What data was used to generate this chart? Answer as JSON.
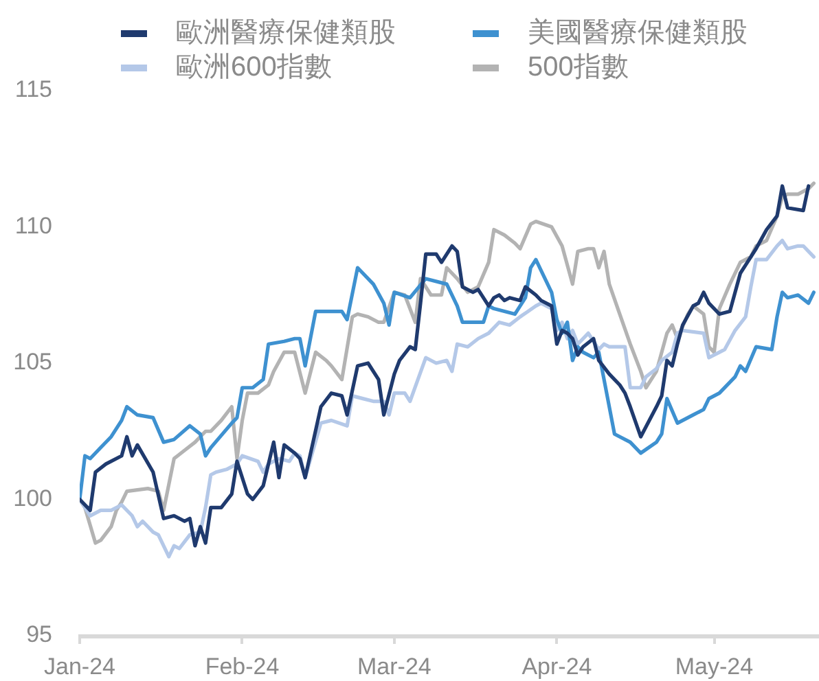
{
  "chart_data": {
    "type": "line",
    "series": [
      {
        "name": "歐洲醫療保健類股",
        "color": "#1f3a6e",
        "x": [
          "2024-01-01",
          "2024-01-03",
          "2024-01-04",
          "2024-01-06",
          "2024-01-09",
          "2024-01-10",
          "2024-01-11",
          "2024-01-12",
          "2024-01-15",
          "2024-01-17",
          "2024-01-19",
          "2024-01-21",
          "2024-01-22",
          "2024-01-23",
          "2024-01-24",
          "2024-01-25",
          "2024-01-26",
          "2024-01-28",
          "2024-01-30",
          "2024-01-31",
          "2024-02-02",
          "2024-02-03",
          "2024-02-05",
          "2024-02-07",
          "2024-02-08",
          "2024-02-09",
          "2024-02-11",
          "2024-02-12",
          "2024-02-13",
          "2024-02-16",
          "2024-02-18",
          "2024-02-20",
          "2024-02-21",
          "2024-02-23",
          "2024-02-25",
          "2024-02-27",
          "2024-02-28",
          "2024-03-01",
          "2024-03-02",
          "2024-03-04",
          "2024-03-05",
          "2024-03-06",
          "2024-03-07",
          "2024-03-09",
          "2024-03-10",
          "2024-03-12",
          "2024-03-13",
          "2024-03-14",
          "2024-03-16",
          "2024-03-17",
          "2024-03-19",
          "2024-03-20",
          "2024-03-21",
          "2024-03-22",
          "2024-03-23",
          "2024-03-25",
          "2024-03-26",
          "2024-03-28",
          "2024-03-29",
          "2024-03-31",
          "2024-04-01",
          "2024-04-02",
          "2024-04-03",
          "2024-04-04",
          "2024-04-05",
          "2024-04-06",
          "2024-04-08",
          "2024-04-09",
          "2024-04-11",
          "2024-04-13",
          "2024-04-14",
          "2024-04-15",
          "2024-04-17",
          "2024-04-20",
          "2024-04-21",
          "2024-04-22",
          "2024-04-23",
          "2024-04-24",
          "2024-04-25",
          "2024-04-27",
          "2024-04-28",
          "2024-04-29",
          "2024-04-30",
          "2024-05-02",
          "2024-05-04",
          "2024-05-06",
          "2024-05-07",
          "2024-05-09",
          "2024-05-11",
          "2024-05-13",
          "2024-05-14",
          "2024-05-15",
          "2024-05-18",
          "2024-05-19"
        ],
        "values": [
          100,
          99.6,
          101.0,
          101.3,
          101.6,
          102.3,
          101.6,
          102.0,
          101.0,
          99.3,
          99.4,
          99.2,
          99.3,
          98.3,
          99.0,
          98.4,
          99.7,
          99.7,
          100.2,
          101.4,
          100.2,
          100.0,
          100.5,
          102.1,
          100.8,
          102.0,
          101.7,
          101.5,
          100.8,
          103.4,
          103.9,
          103.8,
          103.1,
          104.9,
          105.0,
          104.4,
          103.1,
          104.6,
          105.1,
          105.6,
          105.5,
          107.2,
          109.0,
          109.0,
          108.7,
          109.3,
          109.1,
          107.8,
          107.6,
          107.7,
          107.1,
          107.4,
          107.5,
          107.3,
          107.4,
          107.3,
          107.8,
          107.5,
          107.3,
          107.1,
          105.7,
          106.2,
          106.1,
          105.9,
          105.3,
          105.6,
          105.9,
          105.1,
          104.6,
          104.2,
          103.9,
          103.4,
          102.3,
          103.4,
          103.8,
          105.1,
          104.9,
          105.7,
          106.4,
          107.1,
          107.2,
          107.6,
          107.2,
          106.8,
          106.9,
          108.3,
          108.6,
          109.2,
          109.9,
          110.4,
          111.5,
          110.7,
          110.6,
          111.5
        ]
      },
      {
        "name": "美國醫療保健類股",
        "color": "#3e91d0",
        "x": [
          "2024-01-01",
          "2024-01-02",
          "2024-01-03",
          "2024-01-05",
          "2024-01-07",
          "2024-01-09",
          "2024-01-10",
          "2024-01-12",
          "2024-01-15",
          "2024-01-17",
          "2024-01-19",
          "2024-01-22",
          "2024-01-24",
          "2024-01-25",
          "2024-01-26",
          "2024-01-30",
          "2024-01-31",
          "2024-02-01",
          "2024-02-03",
          "2024-02-05",
          "2024-02-06",
          "2024-02-09",
          "2024-02-11",
          "2024-02-12",
          "2024-02-13",
          "2024-02-15",
          "2024-02-20",
          "2024-02-21",
          "2024-02-23",
          "2024-02-26",
          "2024-02-28",
          "2024-02-29",
          "2024-03-01",
          "2024-03-04",
          "2024-03-07",
          "2024-03-11",
          "2024-03-13",
          "2024-03-14",
          "2024-03-18",
          "2024-03-19",
          "2024-03-20",
          "2024-03-24",
          "2024-03-26",
          "2024-03-27",
          "2024-03-28",
          "2024-03-29",
          "2024-03-31",
          "2024-04-01",
          "2024-04-02",
          "2024-04-03",
          "2024-04-04",
          "2024-04-05",
          "2024-04-06",
          "2024-04-08",
          "2024-04-09",
          "2024-04-10",
          "2024-04-12",
          "2024-04-15",
          "2024-04-17",
          "2024-04-20",
          "2024-04-21",
          "2024-04-22",
          "2024-04-24",
          "2024-04-27",
          "2024-04-29",
          "2024-04-30",
          "2024-05-02",
          "2024-05-05",
          "2024-05-06",
          "2024-05-07",
          "2024-05-09",
          "2024-05-12",
          "2024-05-13",
          "2024-05-14",
          "2024-05-15",
          "2024-05-17",
          "2024-05-19",
          "2024-05-20"
        ],
        "values": [
          100,
          101.6,
          101.5,
          101.9,
          102.3,
          102.9,
          103.4,
          103.1,
          103.0,
          102.1,
          102.2,
          102.7,
          102.4,
          101.6,
          101.9,
          102.8,
          103.0,
          104.1,
          104.1,
          104.4,
          105.7,
          105.8,
          105.9,
          105.9,
          104.9,
          106.9,
          106.9,
          106.6,
          108.5,
          107.9,
          107.2,
          106.4,
          107.6,
          107.4,
          108.1,
          107.9,
          107.1,
          106.5,
          106.5,
          107.1,
          107.0,
          106.8,
          107.4,
          108.5,
          108.8,
          108.4,
          107.6,
          106.6,
          106.1,
          106.5,
          105.1,
          105.6,
          105.4,
          105.2,
          105.4,
          104.4,
          102.4,
          102.1,
          101.7,
          102.1,
          102.4,
          103.7,
          102.8,
          103.1,
          103.3,
          103.7,
          103.9,
          104.5,
          104.9,
          104.7,
          105.6,
          105.5,
          106.7,
          107.6,
          107.4,
          107.5,
          107.2,
          107.6
        ]
      },
      {
        "name": "歐洲600指數",
        "color": "#b4c8e8",
        "x": [
          "2024-01-01",
          "2024-01-03",
          "2024-01-05",
          "2024-01-07",
          "2024-01-09",
          "2024-01-11",
          "2024-01-12",
          "2024-01-13",
          "2024-01-15",
          "2024-01-16",
          "2024-01-18",
          "2024-01-19",
          "2024-01-20",
          "2024-01-22",
          "2024-01-24",
          "2024-01-25",
          "2024-01-26",
          "2024-01-27",
          "2024-01-29",
          "2024-01-31",
          "2024-02-01",
          "2024-02-04",
          "2024-02-05",
          "2024-02-06",
          "2024-02-08",
          "2024-02-10",
          "2024-02-11",
          "2024-02-12",
          "2024-02-13",
          "2024-02-16",
          "2024-02-18",
          "2024-02-21",
          "2024-02-22",
          "2024-02-24",
          "2024-02-26",
          "2024-02-28",
          "2024-02-29",
          "2024-03-01",
          "2024-03-03",
          "2024-03-04",
          "2024-03-07",
          "2024-03-09",
          "2024-03-11",
          "2024-03-12",
          "2024-03-13",
          "2024-03-15",
          "2024-03-17",
          "2024-03-19",
          "2024-03-21",
          "2024-03-23",
          "2024-03-25",
          "2024-03-28",
          "2024-03-29",
          "2024-03-31",
          "2024-04-01",
          "2024-04-02",
          "2024-04-03",
          "2024-04-04",
          "2024-04-05",
          "2024-04-07",
          "2024-04-08",
          "2024-04-09",
          "2024-04-10",
          "2024-04-11",
          "2024-04-14",
          "2024-04-15",
          "2024-04-17",
          "2024-04-18",
          "2024-04-20",
          "2024-04-21",
          "2024-04-23",
          "2024-04-24",
          "2024-04-25",
          "2024-04-29",
          "2024-04-30",
          "2024-05-02",
          "2024-05-03",
          "2024-05-05",
          "2024-05-07",
          "2024-05-08",
          "2024-05-09",
          "2024-05-11",
          "2024-05-13",
          "2024-05-14",
          "2024-05-15",
          "2024-05-17",
          "2024-05-18",
          "2024-05-20"
        ],
        "values": [
          100,
          99.4,
          99.6,
          99.6,
          99.8,
          99.4,
          99.0,
          99.2,
          98.8,
          98.7,
          97.9,
          98.3,
          98.2,
          98.7,
          98.8,
          99.7,
          100.9,
          101.0,
          101.1,
          101.3,
          101.6,
          101.4,
          101.0,
          101.3,
          101.5,
          101.4,
          101.7,
          101.6,
          100.8,
          102.8,
          102.9,
          102.7,
          103.8,
          103.7,
          103.6,
          103.6,
          103.1,
          103.9,
          103.9,
          103.6,
          105.2,
          105.0,
          105.1,
          104.7,
          105.7,
          105.6,
          105.9,
          106.1,
          106.5,
          106.4,
          106.7,
          107.1,
          107.2,
          107.0,
          106.2,
          106.5,
          105.9,
          106.2,
          105.7,
          106.1,
          105.8,
          105.5,
          105.7,
          105.6,
          105.6,
          104.1,
          104.1,
          104.5,
          104.8,
          105.1,
          105.4,
          106.1,
          106.2,
          106.1,
          105.2,
          105.4,
          105.5,
          106.2,
          106.7,
          107.8,
          108.8,
          108.8,
          109.3,
          109.5,
          109.2,
          109.3,
          109.3,
          108.9
        ]
      },
      {
        "name": "500指數",
        "color": "#b3b3b3",
        "x": [
          "2024-01-01",
          "2024-01-02",
          "2024-01-04",
          "2024-01-05",
          "2024-01-07",
          "2024-01-08",
          "2024-01-09",
          "2024-01-10",
          "2024-01-14",
          "2024-01-16",
          "2024-01-17",
          "2024-01-19",
          "2024-01-21",
          "2024-01-23",
          "2024-01-25",
          "2024-01-26",
          "2024-01-28",
          "2024-01-30",
          "2024-01-31",
          "2024-02-01",
          "2024-02-02",
          "2024-02-04",
          "2024-02-06",
          "2024-02-07",
          "2024-02-09",
          "2024-02-11",
          "2024-02-13",
          "2024-02-15",
          "2024-02-17",
          "2024-02-18",
          "2024-02-20",
          "2024-02-22",
          "2024-02-23",
          "2024-02-25",
          "2024-02-27",
          "2024-02-28",
          "2024-03-01",
          "2024-03-03",
          "2024-03-05",
          "2024-03-06",
          "2024-03-08",
          "2024-03-10",
          "2024-03-11",
          "2024-03-13",
          "2024-03-15",
          "2024-03-17",
          "2024-03-19",
          "2024-03-20",
          "2024-03-22",
          "2024-03-24",
          "2024-03-25",
          "2024-03-27",
          "2024-03-28",
          "2024-03-31",
          "2024-04-02",
          "2024-04-04",
          "2024-04-05",
          "2024-04-07",
          "2024-04-08",
          "2024-04-09",
          "2024-04-10",
          "2024-04-11",
          "2024-04-13",
          "2024-04-15",
          "2024-04-17",
          "2024-04-18",
          "2024-04-20",
          "2024-04-22",
          "2024-04-23",
          "2024-04-24",
          "2024-04-26",
          "2024-04-27",
          "2024-04-29",
          "2024-04-30",
          "2024-05-01",
          "2024-05-02",
          "2024-05-04",
          "2024-05-06",
          "2024-05-08",
          "2024-05-09",
          "2024-05-11",
          "2024-05-13",
          "2024-05-14",
          "2024-05-15",
          "2024-05-17",
          "2024-05-19",
          "2024-05-20"
        ],
        "values": [
          100,
          99.7,
          98.4,
          98.5,
          99.0,
          99.6,
          99.9,
          100.3,
          100.4,
          100.3,
          99.6,
          101.5,
          101.8,
          102.1,
          102.5,
          102.5,
          102.9,
          103.4,
          101.5,
          102.9,
          103.9,
          103.9,
          104.2,
          104.7,
          105.4,
          105.4,
          103.9,
          105.4,
          105.1,
          104.9,
          104.4,
          106.7,
          106.8,
          106.7,
          106.5,
          106.5,
          107.6,
          107.5,
          106.5,
          108.1,
          107.5,
          107.5,
          108.5,
          108.1,
          107.6,
          107.8,
          108.7,
          109.9,
          109.7,
          109.4,
          109.2,
          110.1,
          110.2,
          110.0,
          109.3,
          107.9,
          109.1,
          109.2,
          109.2,
          108.5,
          109.1,
          107.9,
          106.8,
          105.7,
          104.7,
          104.1,
          104.7,
          106.1,
          106.4,
          105.9,
          106.8,
          107.1,
          106.8,
          105.6,
          105.4,
          107.0,
          107.9,
          108.7,
          108.9,
          109.3,
          109.5,
          110.4,
          111.1,
          111.2,
          111.2,
          111.4,
          111.6
        ]
      }
    ],
    "xlim": [
      "2024-01-01",
      "2024-05-21"
    ],
    "xticks": [
      {
        "value": "2024-01-01",
        "label": "Jan-24"
      },
      {
        "value": "2024-02-01",
        "label": "Feb-24"
      },
      {
        "value": "2024-03-01",
        "label": "Mar-24"
      },
      {
        "value": "2024-04-01",
        "label": "Apr-24"
      },
      {
        "value": "2024-05-01",
        "label": "May-24"
      }
    ],
    "ylim": [
      95,
      115
    ],
    "yticks": [
      95,
      100,
      105,
      110,
      115
    ],
    "legend": "top",
    "grid": false
  }
}
